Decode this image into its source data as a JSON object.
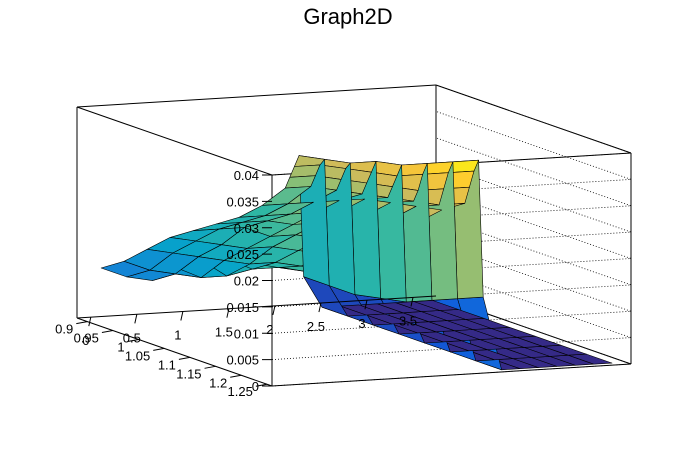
{
  "chart_data": {
    "type": "surface3d",
    "title": "Graph2D",
    "xlabel": "",
    "ylabel": "",
    "zlabel": "",
    "xlim": [
      -0.15,
      3.75
    ],
    "ylim": [
      0.88,
      1.26
    ],
    "zlim": [
      0,
      0.04
    ],
    "x_ticks": [
      "0",
      "0.5",
      "1",
      "1.5",
      "2",
      "2.5",
      "3",
      "3.5"
    ],
    "y_ticks": [
      "0.9",
      "0.95",
      "1",
      "1.05",
      "1.1",
      "1.15",
      "1.2",
      "1.25"
    ],
    "z_ticks": [
      "0",
      "0.005",
      "0.01",
      "0.015",
      "0.02",
      "0.025",
      "0.03",
      "0.035",
      "0.04"
    ],
    "grid": true,
    "palette": [
      "#352a87",
      "#0f5cdd",
      "#1481d6",
      "#06a4ca",
      "#2eb7a4",
      "#87bf77",
      "#d1bb59",
      "#fec832",
      "#f9fb0e"
    ],
    "mesh_color": "#000000",
    "surface_x": [
      0,
      0.25,
      0.5,
      0.75,
      1.0,
      1.25,
      1.5,
      1.75,
      2.0,
      2.05,
      2.1,
      2.15,
      2.2,
      2.4,
      2.6,
      2.8,
      3.0,
      3.2,
      3.4,
      3.6
    ],
    "surface_y": [
      0.9,
      0.95,
      1.0,
      1.05,
      1.1,
      1.15,
      1.2,
      1.25
    ],
    "surface_z": [
      [
        0.01,
        0.011,
        0.013,
        0.015,
        0.016,
        0.017,
        0.018,
        0.02,
        0.023,
        0.025,
        0.027,
        0.029,
        0.006,
        0.0,
        0.0,
        0.0,
        0.0,
        0.0,
        0.0,
        0.0
      ],
      [
        0.01,
        0.011,
        0.014,
        0.016,
        0.018,
        0.019,
        0.02,
        0.022,
        0.025,
        0.027,
        0.029,
        0.03,
        0.006,
        0.0,
        0.0,
        0.0,
        0.0,
        0.0,
        0.0,
        0.0
      ],
      [
        0.011,
        0.012,
        0.015,
        0.017,
        0.02,
        0.021,
        0.022,
        0.024,
        0.026,
        0.028,
        0.03,
        0.031,
        0.006,
        0.0,
        0.0,
        0.0,
        0.0,
        0.0,
        0.0,
        0.0
      ],
      [
        0.015,
        0.013,
        0.016,
        0.018,
        0.02,
        0.022,
        0.024,
        0.026,
        0.027,
        0.029,
        0.031,
        0.033,
        0.007,
        0.0,
        0.0,
        0.0,
        0.0,
        0.0,
        0.0,
        0.0
      ],
      [
        0.018,
        0.015,
        0.017,
        0.02,
        0.022,
        0.024,
        0.026,
        0.028,
        0.028,
        0.03,
        0.032,
        0.034,
        0.008,
        0.0,
        0.0,
        0.0,
        0.0,
        0.0,
        0.0,
        0.0
      ],
      [
        0.02,
        0.018,
        0.019,
        0.021,
        0.023,
        0.025,
        0.027,
        0.029,
        0.029,
        0.031,
        0.034,
        0.036,
        0.01,
        0.0,
        0.0,
        0.0,
        0.0,
        0.0,
        0.0,
        0.0
      ],
      [
        0.021,
        0.02,
        0.02,
        0.022,
        0.024,
        0.026,
        0.028,
        0.03,
        0.03,
        0.033,
        0.036,
        0.038,
        0.012,
        0.0,
        0.0,
        0.0,
        0.0,
        0.0,
        0.0,
        0.0
      ],
      [
        0.022,
        0.021,
        0.021,
        0.023,
        0.025,
        0.027,
        0.029,
        0.031,
        0.032,
        0.035,
        0.038,
        0.04,
        0.014,
        0.0,
        0.0,
        0.0,
        0.0,
        0.0,
        0.0,
        0.0
      ]
    ]
  }
}
